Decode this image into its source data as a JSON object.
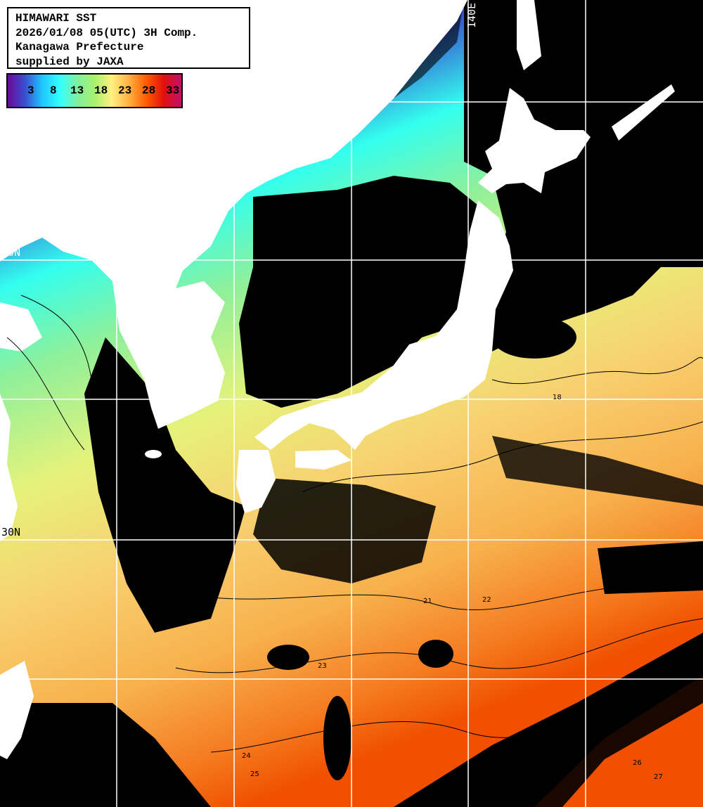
{
  "header": {
    "lines": [
      "HIMAWARI SST",
      "2026/01/08 05(UTC) 3H Comp.",
      "Kanagawa Prefecture",
      "supplied by JAXA"
    ]
  },
  "colorbar": {
    "unit_implied": "degC",
    "ticks": [
      "3",
      "8",
      "13",
      "18",
      "23",
      "28",
      "33"
    ],
    "colors": [
      "#6a0a9a",
      "#3a4fd0",
      "#1ec8ff",
      "#33ffff",
      "#7ff0a0",
      "#a8f070",
      "#fff080",
      "#ffb040",
      "#ff5a00",
      "#e01010",
      "#c0106a"
    ]
  },
  "grid": {
    "labels": {
      "lat_40": "40N",
      "lat_30": "30N",
      "lon_140": "140E"
    }
  },
  "colors": {
    "land": "#ffffff",
    "cloud": "#000000",
    "grid": "#ffffff",
    "contour": "#000000"
  },
  "contour_labels": [
    "18",
    "21",
    "22",
    "23",
    "24",
    "25",
    "26",
    "27"
  ]
}
